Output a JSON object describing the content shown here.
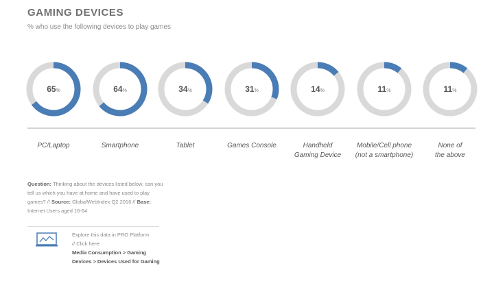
{
  "header": {
    "title": "GAMING DEVICES",
    "subtitle": "% who use the following devices to play games"
  },
  "colors": {
    "accent": "#4a7db5",
    "track": "#d9d9d9"
  },
  "chart_data": {
    "type": "donut",
    "unit": "%",
    "categories": [
      "PC/Laptop",
      "Smartphone",
      "Tablet",
      "Games Console",
      "Handheld Gaming Device",
      "Mobile/Cell phone (not a smartphone)",
      "None of the above"
    ],
    "category_lines": [
      [
        "PC/Laptop"
      ],
      [
        "Smartphone"
      ],
      [
        "Tablet"
      ],
      [
        "Games Console"
      ],
      [
        "Handheld",
        "Gaming Device"
      ],
      [
        "Mobile/Cell phone",
        "(not a smartphone)"
      ],
      [
        "None of",
        "the above"
      ]
    ],
    "values": [
      65,
      64,
      34,
      31,
      14,
      11,
      11
    ],
    "max": 100
  },
  "footnote": {
    "question_label": "Question:",
    "question_text": "Thinking about the devices listed below, can you tell us which you have at home and have used to play games?",
    "sep1": "//",
    "source_label": "Source:",
    "source_text": "GlobalWebIndex Q2 2016",
    "sep2": "//",
    "base_label": "Base:",
    "base_text": "Internet Users aged 16-64"
  },
  "explore": {
    "icon": "chart-screen-icon",
    "line1": "Explore this data in PRO Platform",
    "line2": "// Click here:",
    "path": "Media Consumption > Gaming Devices > Devices Used for Gaming"
  }
}
